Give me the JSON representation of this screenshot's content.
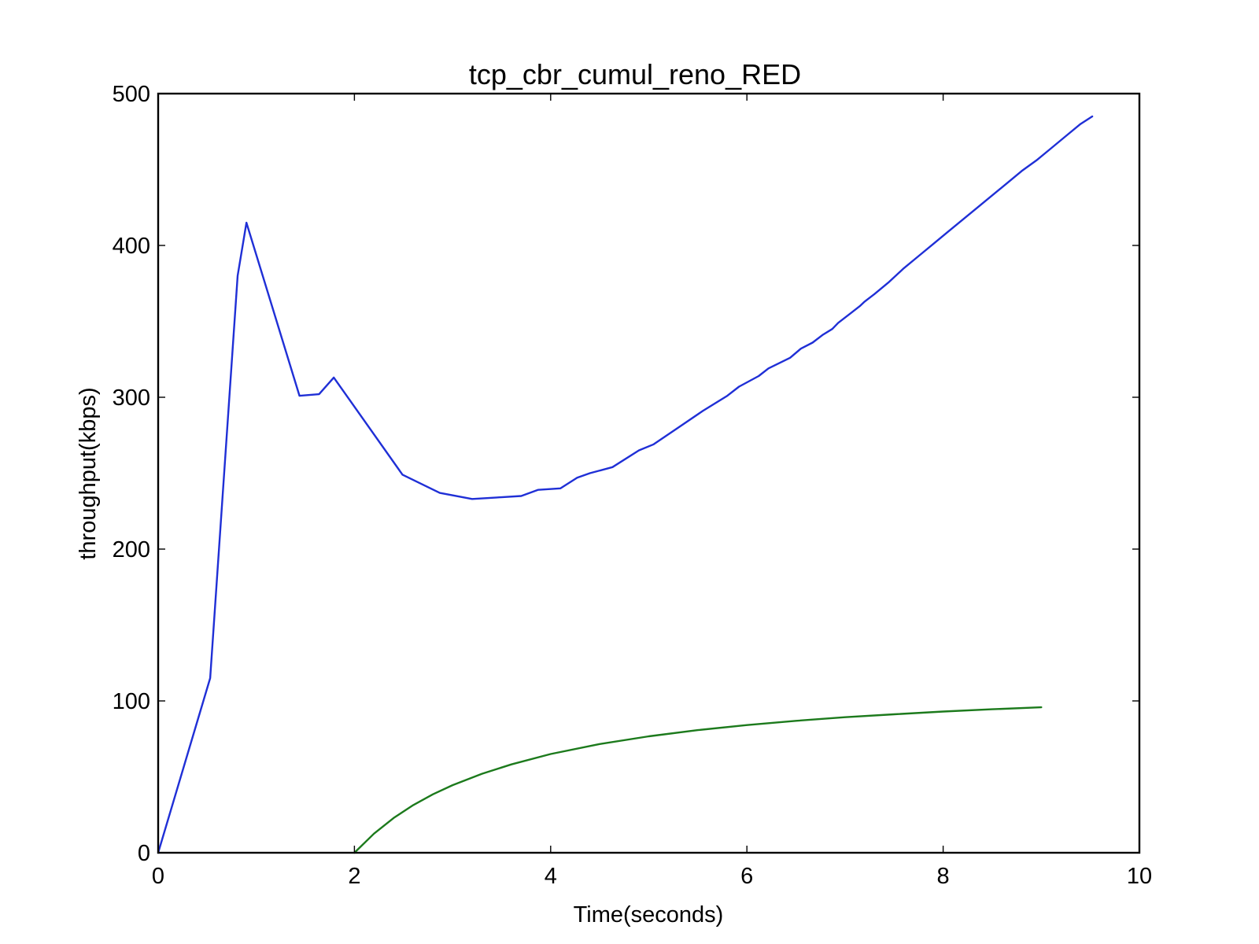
{
  "chart_data": {
    "type": "line",
    "title": "tcp_cbr_cumul_reno_RED",
    "xlabel": "Time(seconds)",
    "ylabel": "throughput(kbps)",
    "xlim": [
      0,
      10
    ],
    "ylim": [
      0,
      500
    ],
    "xticks": [
      0,
      2,
      4,
      6,
      8,
      10
    ],
    "yticks": [
      0,
      100,
      200,
      300,
      400,
      500
    ],
    "xtick_labels": [
      "0",
      "2",
      "4",
      "6",
      "8",
      "10"
    ],
    "ytick_labels": [
      "0",
      "100",
      "200",
      "300",
      "400",
      "500"
    ],
    "grid": false,
    "legend": "none",
    "series": [
      {
        "color": "#1f2fd6",
        "x": [
          0,
          0.53,
          0.81,
          0.9,
          1.44,
          1.64,
          1.79,
          2.49,
          2.87,
          3.2,
          3.45,
          3.7,
          3.87,
          4.1,
          4.27,
          4.4,
          4.63,
          4.9,
          5.05,
          5.3,
          5.55,
          5.8,
          5.92,
          6.12,
          6.22,
          6.44,
          6.55,
          6.67,
          6.77,
          6.87,
          6.93,
          7.05,
          7.15,
          7.2,
          7.3,
          7.45,
          7.6,
          7.75,
          7.9,
          8.05,
          8.2,
          8.35,
          8.5,
          8.65,
          8.8,
          8.95,
          9.1,
          9.25,
          9.4,
          9.52
        ],
        "y": [
          0,
          115,
          380,
          415,
          301,
          302,
          313,
          249,
          237,
          233,
          234,
          235,
          239,
          240,
          247,
          250,
          254,
          265,
          269,
          280,
          291,
          301,
          307,
          314,
          319,
          326,
          332,
          336,
          341,
          345,
          349,
          355,
          360,
          363,
          368,
          376,
          385,
          393,
          401,
          409,
          417,
          425,
          433,
          441,
          449,
          456,
          464,
          472,
          480,
          485
        ]
      },
      {
        "color": "#1c7a1c",
        "x": [
          2.0,
          2.2,
          2.4,
          2.6,
          2.8,
          3.0,
          3.3,
          3.6,
          4.0,
          4.5,
          5.0,
          5.5,
          6.0,
          6.5,
          7.0,
          7.5,
          8.0,
          8.5,
          9.0
        ],
        "y": [
          0,
          12.6,
          22.9,
          31.4,
          38.5,
          44.5,
          52.0,
          58.2,
          65.0,
          71.6,
          76.7,
          80.8,
          84.1,
          86.9,
          89.3,
          91.2,
          93.0,
          94.5,
          95.8
        ]
      }
    ]
  }
}
